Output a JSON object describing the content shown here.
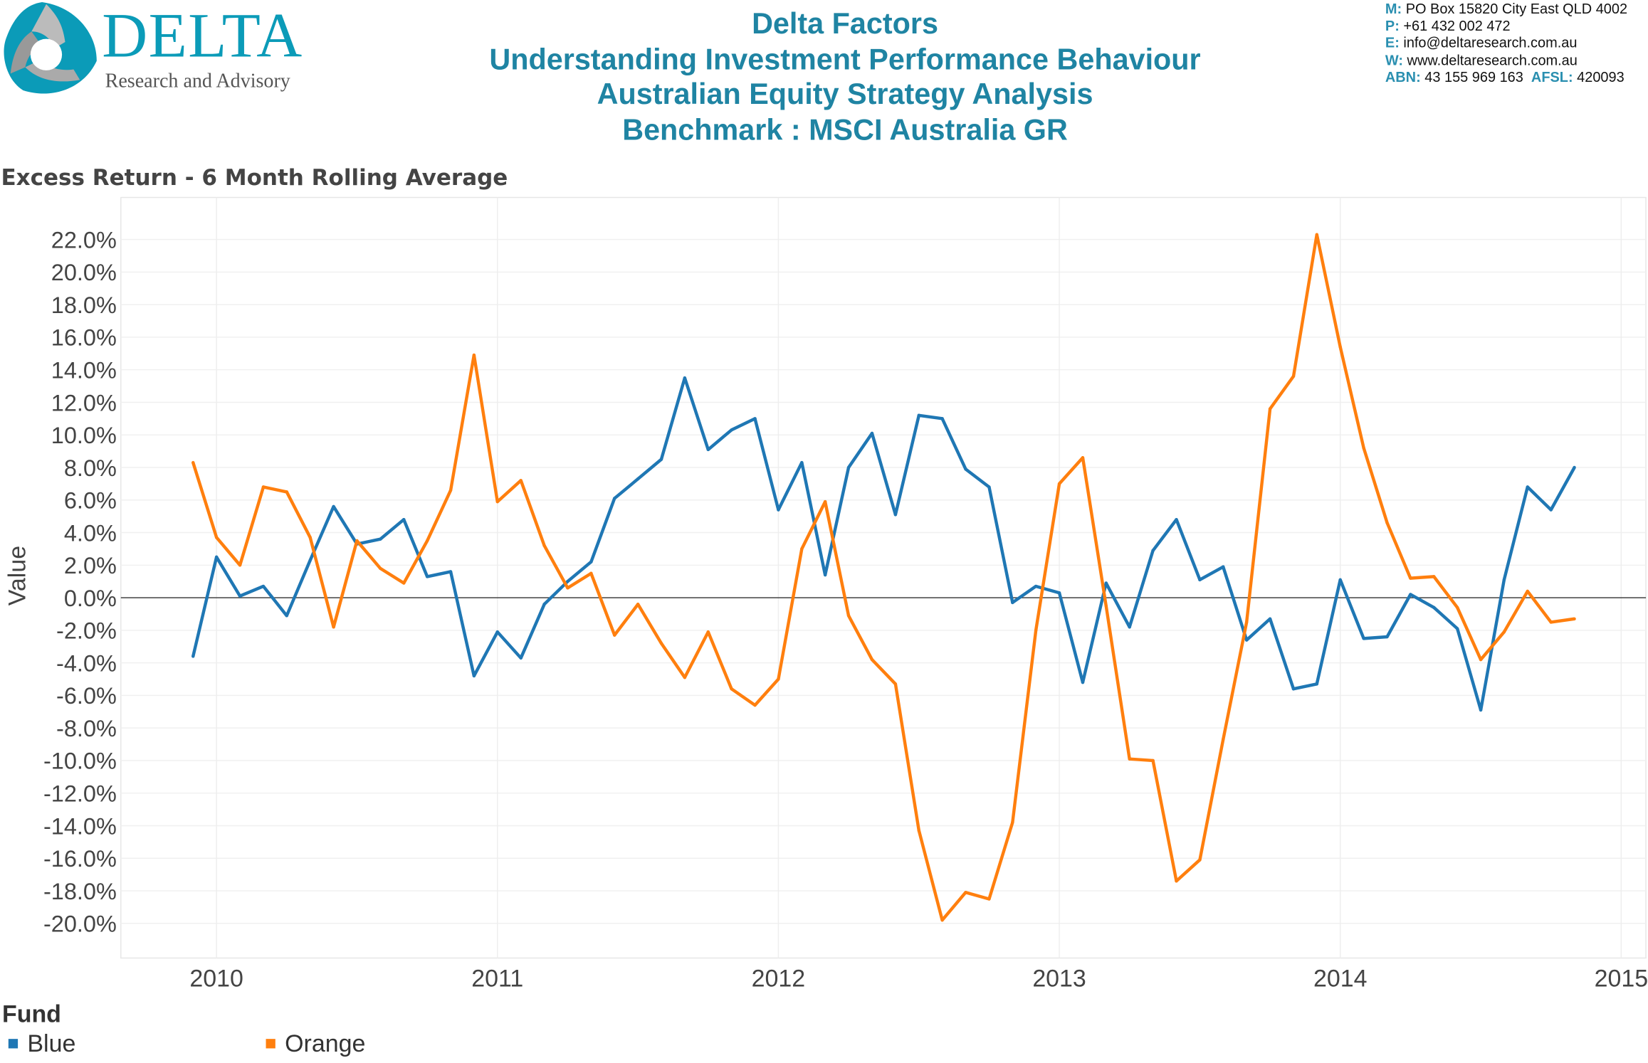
{
  "logo": {
    "name": "DELTA",
    "tagline": "Research and Advisory"
  },
  "header": {
    "lines": [
      "Delta Factors",
      "Understanding Investment Performance Behaviour",
      "Australian Equity Strategy Analysis",
      "Benchmark : MSCI Australia GR"
    ]
  },
  "contact": {
    "m_label": "M:",
    "m": "PO Box 15820 City East QLD 4002",
    "p_label": "P:",
    "p": "+61 432 002 472",
    "e_label": "E:",
    "e": "info@deltaresearch.com.au",
    "w_label": "W:",
    "w": "www.deltaresearch.com.au",
    "abn_label": "ABN:",
    "abn": "43 155 969 163",
    "afsl_label": "AFSL:",
    "afsl": "420093"
  },
  "sheet_title": "Excess Return - 6 Month Rolling Average",
  "legend": {
    "title": "Fund",
    "items": [
      "Blue",
      "Orange"
    ]
  },
  "chart_data": {
    "type": "line",
    "title": "Excess Return - 6 Month Rolling Average",
    "xlabel": "",
    "ylabel": "Value",
    "ylim": [
      -22,
      24
    ],
    "yticks": [
      -20,
      -18,
      -16,
      -14,
      -12,
      -10,
      -8,
      -6,
      -4,
      -2,
      0,
      2,
      4,
      6,
      8,
      10,
      12,
      14,
      16,
      18,
      20,
      22
    ],
    "ytick_format": "percent_1dp",
    "xticks": [
      "2010",
      "2011",
      "2012",
      "2013",
      "2014",
      "2015"
    ],
    "x_start": "2009-12",
    "x_end": "2014-11",
    "x_frequency": "monthly",
    "legend_title": "Fund",
    "legend_position": "bottom-left",
    "grid": true,
    "zero_line": true,
    "series": [
      {
        "name": "Blue",
        "color": "#1f77b4",
        "values": [
          -3.6,
          2.5,
          0.1,
          0.7,
          -1.1,
          2.3,
          5.6,
          3.3,
          3.6,
          4.8,
          1.3,
          1.6,
          -4.8,
          -2.1,
          -3.7,
          -0.4,
          1.0,
          2.2,
          6.1,
          7.3,
          8.5,
          13.5,
          9.1,
          10.3,
          11.0,
          5.4,
          8.3,
          1.4,
          8.0,
          10.1,
          5.1,
          11.2,
          11.0,
          7.9,
          6.8,
          -0.3,
          0.7,
          0.3,
          -5.2,
          0.9,
          -1.8,
          2.9,
          4.8,
          1.1,
          1.9,
          -2.6,
          -1.3,
          -5.6,
          -5.3,
          1.1,
          -2.5,
          -2.4,
          0.2,
          -0.6,
          -1.9,
          -6.9,
          1.1,
          6.8,
          5.4,
          8.0
        ]
      },
      {
        "name": "Orange",
        "color": "#ff7f0e",
        "values": [
          8.3,
          3.7,
          2.0,
          6.8,
          6.5,
          3.7,
          -1.8,
          3.5,
          1.8,
          0.9,
          3.5,
          6.6,
          14.9,
          5.9,
          7.2,
          3.2,
          0.6,
          1.5,
          -2.3,
          -0.4,
          -2.8,
          -4.9,
          -2.1,
          -5.6,
          -6.6,
          -5.0,
          3.0,
          5.9,
          -1.1,
          -3.8,
          -5.3,
          -14.3,
          -19.8,
          -18.1,
          -18.5,
          -13.8,
          -2.0,
          7.0,
          8.6,
          -0.5,
          -9.9,
          -10.0,
          -17.4,
          -16.1,
          -8.7,
          -1.5,
          11.6,
          13.6,
          22.3,
          15.4,
          9.2,
          4.6,
          1.2,
          1.3,
          -0.6,
          -3.8,
          -2.1,
          0.4,
          -1.5,
          -1.3
        ]
      }
    ]
  }
}
